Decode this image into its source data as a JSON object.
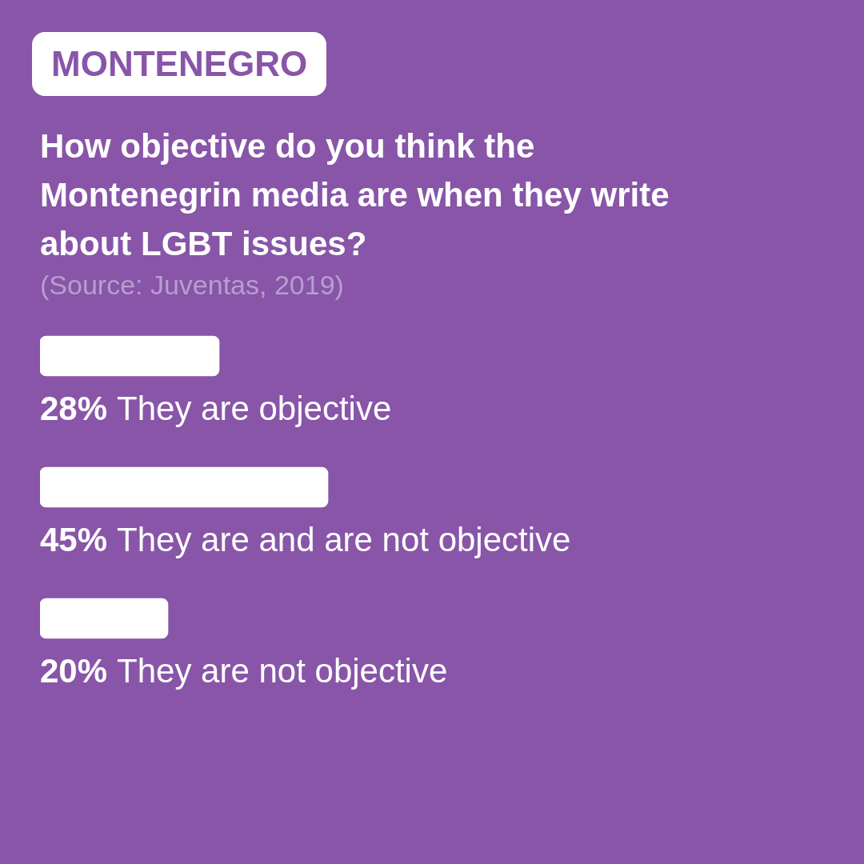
{
  "chart_data": {
    "type": "bar",
    "orientation": "horizontal",
    "subtitle": "MONTENEGRO",
    "title": "How objective do you think the Montenegrin media are when they write about LGBT issues?",
    "annotations": [
      "(Source: Juventas, 2019)"
    ],
    "categories": [
      "They are objective",
      "They are and are not objective",
      "They are not objective"
    ],
    "values": [
      28,
      45,
      20
    ],
    "value_labels": [
      "28%",
      "45%",
      "20%"
    ],
    "color": "#ffffff"
  }
}
